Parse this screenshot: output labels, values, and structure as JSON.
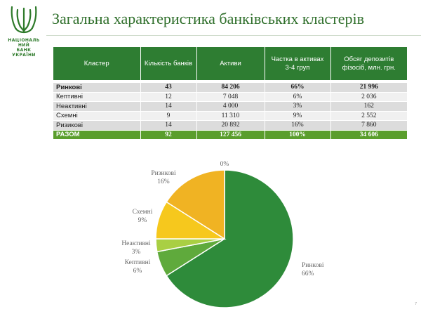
{
  "logo": {
    "text": "НАЦІОНАЛЬ\nНИЙ\nБАНК\nУКРАЇНИ",
    "color": "#2e7a2a"
  },
  "header": {
    "title": "Загальна характеристика банківських кластерів"
  },
  "table": {
    "columns": [
      "Кластер",
      "Кількість банків",
      "Активи",
      "Частка в активах 3-4 груп",
      "Обсяг депозитів фізосіб, млн. грн."
    ],
    "rows": [
      {
        "name": "Ринкові",
        "banks": "43",
        "assets": "84 206",
        "share": "66%",
        "deposits": "21 996"
      },
      {
        "name": "Кептивні",
        "banks": "12",
        "assets": "7 048",
        "share": "6%",
        "deposits": "2 036"
      },
      {
        "name": "Неактивні",
        "banks": "14",
        "assets": "4 000",
        "share": "3%",
        "deposits": "162"
      },
      {
        "name": "Схемні",
        "banks": "9",
        "assets": "11 310",
        "share": "9%",
        "deposits": "2 552"
      },
      {
        "name": "Ризикові",
        "banks": "14",
        "assets": "20 892",
        "share": "16%",
        "deposits": "7 860"
      }
    ],
    "total": {
      "name": "РАЗОМ",
      "banks": "92",
      "assets": "127 456",
      "share": "100%",
      "deposits": "34 606"
    },
    "header_color": "#2e7d32",
    "total_color": "#5a9e2c"
  },
  "chart_data": {
    "type": "pie",
    "title": "",
    "slices": [
      {
        "label": "Ринкові",
        "value": 66,
        "value_label": "66%",
        "color": "#2e8b3a"
      },
      {
        "label": "Кептивні",
        "value": 6,
        "value_label": "6%",
        "color": "#5faa3c"
      },
      {
        "label": "Неактивні",
        "value": 3,
        "value_label": "3%",
        "color": "#a9cf43"
      },
      {
        "label": "Схемні",
        "value": 9,
        "value_label": "9%",
        "color": "#f6c81d"
      },
      {
        "label": "Ризикові",
        "value": 16,
        "value_label": "16%",
        "color": "#f0b323"
      },
      {
        "label": "",
        "value": 0,
        "value_label": "0%",
        "color": "#ffffff"
      }
    ],
    "start_angle_deg": 0,
    "direction": "clockwise",
    "legend": "none"
  },
  "footer": {
    "page_number": "7"
  }
}
